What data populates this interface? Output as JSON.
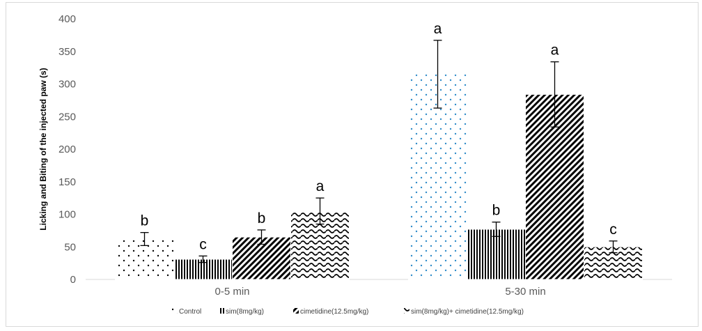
{
  "chart_data": {
    "type": "bar",
    "ylabel": "Licking and Biting of the injected paw (s)",
    "xlabel": "",
    "ylim": [
      0,
      400
    ],
    "yticks": [
      0,
      50,
      100,
      150,
      200,
      250,
      300,
      350,
      400
    ],
    "categories": [
      "0-5 min",
      "5-30 min"
    ],
    "grid": false,
    "legend_position": "bottom",
    "series": [
      {
        "name": "Control",
        "pattern": "dots",
        "values": [
          62,
          315
        ],
        "errors": [
          10,
          52
        ],
        "significance": [
          "b",
          "a"
        ]
      },
      {
        "name": "sim(8mg/kg)",
        "pattern": "vertical-stripes",
        "values": [
          31,
          77
        ],
        "errors": [
          5,
          11
        ],
        "significance": [
          "c",
          "b"
        ]
      },
      {
        "name": "cimetidine(12.5mg/kg)",
        "pattern": "diagonal-stripes",
        "values": [
          65,
          284
        ],
        "errors": [
          11,
          50
        ],
        "significance": [
          "b",
          "a"
        ]
      },
      {
        "name": "sim(8mg/kg)+ cimetidine(12.5mg/kg)",
        "pattern": "waves",
        "values": [
          105,
          50
        ],
        "errors": [
          20,
          9
        ],
        "significance": [
          "a",
          "c"
        ]
      }
    ]
  }
}
